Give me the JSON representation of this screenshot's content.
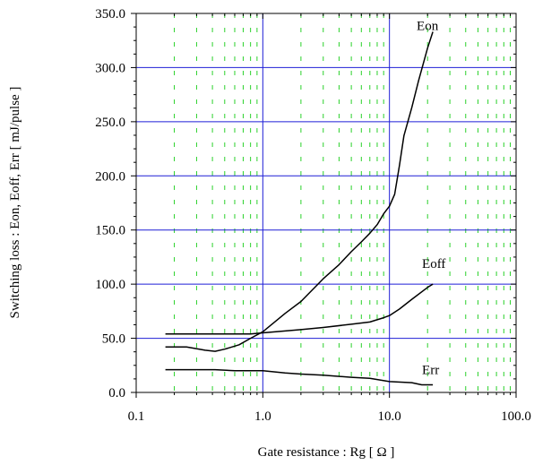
{
  "chart_data": {
    "type": "line",
    "title": "",
    "xlabel": "Gate resistance : Rg [ Ω ]",
    "ylabel": "Switching loss : Eon, Eoff, Err [ mJ/pulse ]",
    "x_scale": "log",
    "xlim": [
      0.1,
      100.0
    ],
    "ylim": [
      0.0,
      350.0
    ],
    "x_ticks": [
      "0.1",
      "1.0",
      "10.0",
      "100.0"
    ],
    "y_ticks": [
      "0.0",
      "50.0",
      "100.0",
      "150.0",
      "200.0",
      "250.0",
      "300.0",
      "350.0"
    ],
    "grid": {
      "major": true,
      "minor": true,
      "major_color": "#1f1fd6",
      "minor_color": "#2bd12b"
    },
    "legend": "none",
    "series": [
      {
        "name": "Eon",
        "color": "#000000",
        "x": [
          0.17,
          0.25,
          0.35,
          0.42,
          0.5,
          0.65,
          0.8,
          1.0,
          1.5,
          2.0,
          3.0,
          4.0,
          5.0,
          6.0,
          7.0,
          8.0,
          9.0,
          10.0,
          11.0,
          12.0,
          13.0,
          15.0,
          17.0,
          20.0,
          22.0
        ],
        "y": [
          42,
          42,
          39,
          38,
          40,
          44,
          50,
          56,
          73,
          84,
          105,
          118,
          130,
          139,
          147,
          155,
          165,
          172,
          183,
          210,
          237,
          263,
          288,
          318,
          333
        ]
      },
      {
        "name": "Eoff",
        "color": "#000000",
        "x": [
          0.17,
          0.3,
          0.5,
          0.8,
          1.0,
          2.0,
          3.0,
          5.0,
          7.0,
          9.0,
          10.0,
          12.0,
          15.0,
          20.0,
          22.0
        ],
        "y": [
          54,
          54,
          54,
          54,
          55,
          58,
          60,
          63,
          65,
          69,
          71,
          77,
          86,
          97,
          100
        ]
      },
      {
        "name": "Err",
        "color": "#000000",
        "x": [
          0.17,
          0.3,
          0.42,
          0.6,
          0.8,
          1.0,
          1.5,
          2.0,
          3.0,
          5.0,
          7.0,
          10.0,
          15.0,
          18.0,
          22.0
        ],
        "y": [
          21,
          21,
          21,
          20,
          20,
          20,
          18,
          17,
          16,
          14,
          13,
          10,
          9,
          7,
          7
        ]
      }
    ]
  }
}
